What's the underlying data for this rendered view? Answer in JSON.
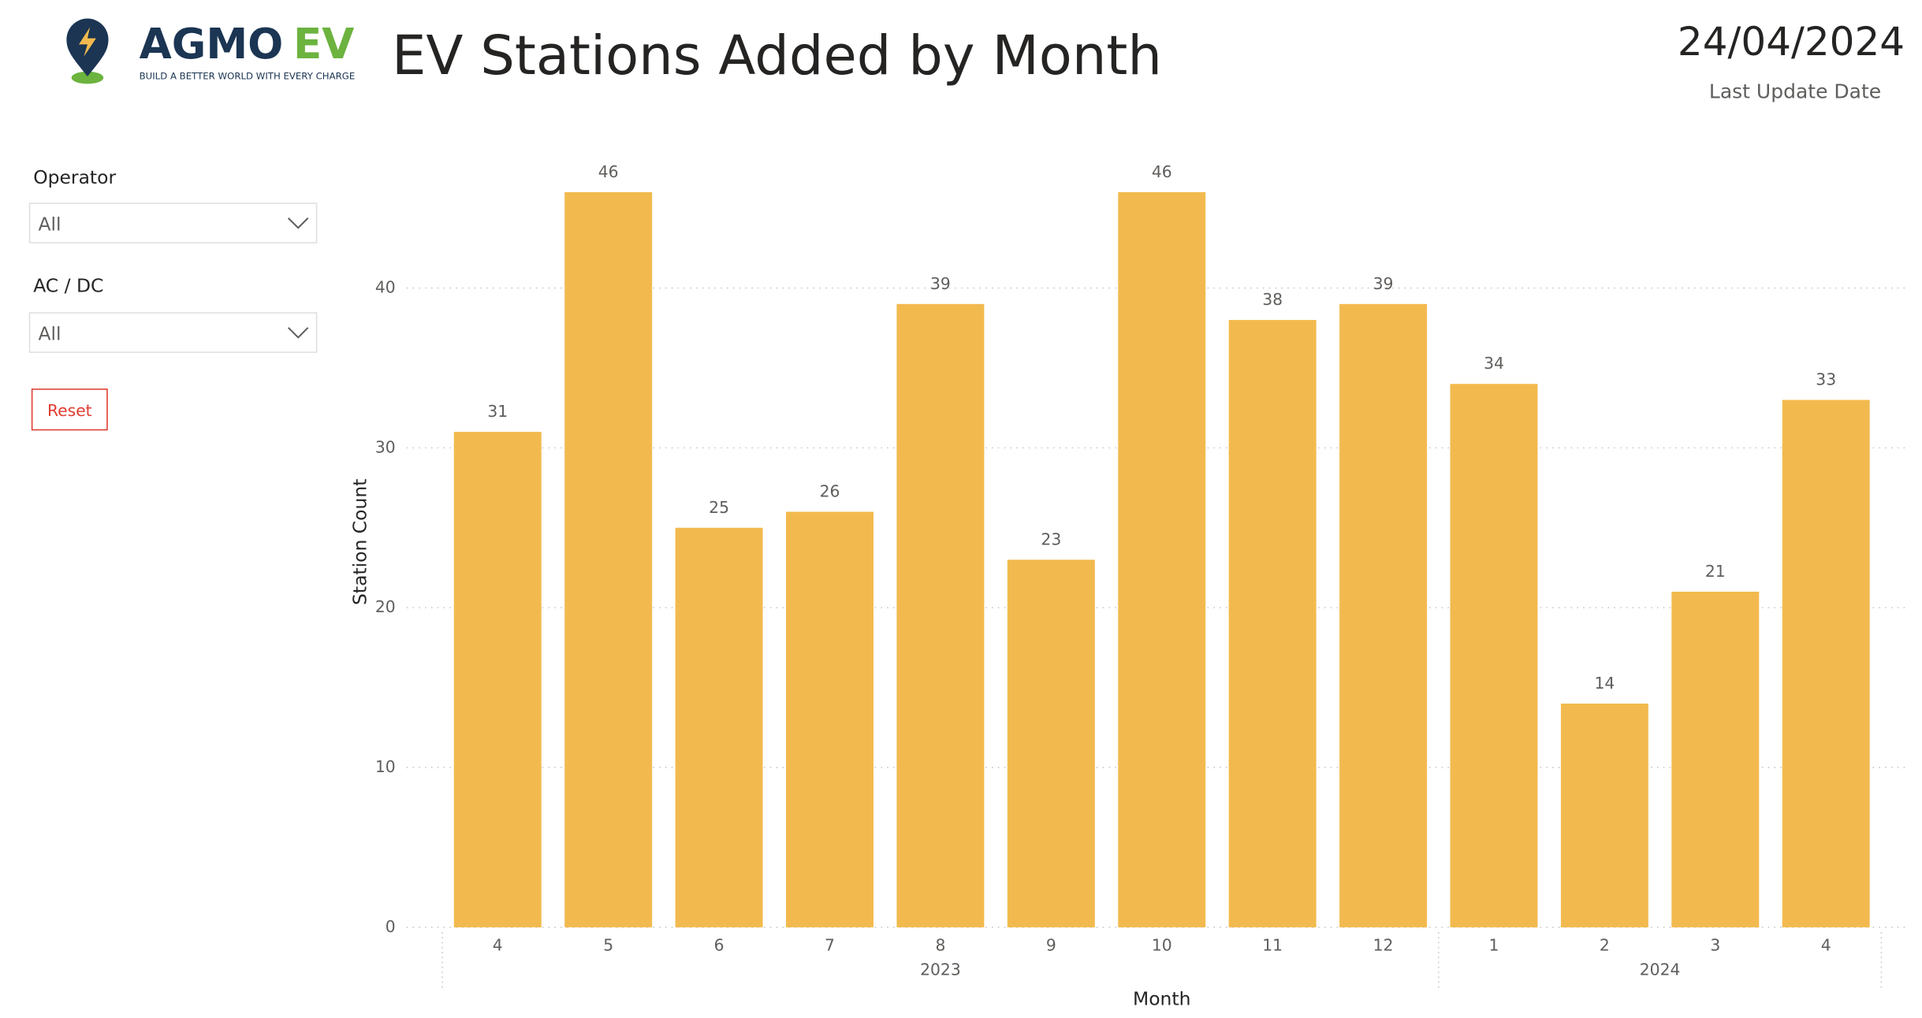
{
  "logo": {
    "brand_a": "AGMO",
    "brand_b": "EV",
    "tagline": "BUILD A BETTER WORLD WITH EVERY CHARGE"
  },
  "header": {
    "title": "EV Stations Added by Month",
    "date": "24/04/2024",
    "date_label": "Last Update Date"
  },
  "filters": [
    {
      "label": "Operator",
      "value": "All"
    },
    {
      "label": "AC / DC",
      "value": "All"
    }
  ],
  "reset": "Reset",
  "chart_data": {
    "type": "bar",
    "categories": [
      "4",
      "5",
      "6",
      "7",
      "8",
      "9",
      "10",
      "11",
      "12",
      "1",
      "2",
      "3",
      "4"
    ],
    "category_years": [
      "2023",
      "2023",
      "2023",
      "2023",
      "2023",
      "2023",
      "2023",
      "2023",
      "2023",
      "2024",
      "2024",
      "2024",
      "2024"
    ],
    "values": [
      31,
      46,
      25,
      26,
      39,
      23,
      46,
      38,
      39,
      34,
      14,
      21,
      33
    ],
    "color": "#f2ba4e",
    "ylim": [
      0,
      48
    ],
    "yticks": [
      0,
      10,
      20,
      30,
      40
    ],
    "grid": true,
    "x_label": "Month",
    "y_label": "Station Count"
  }
}
